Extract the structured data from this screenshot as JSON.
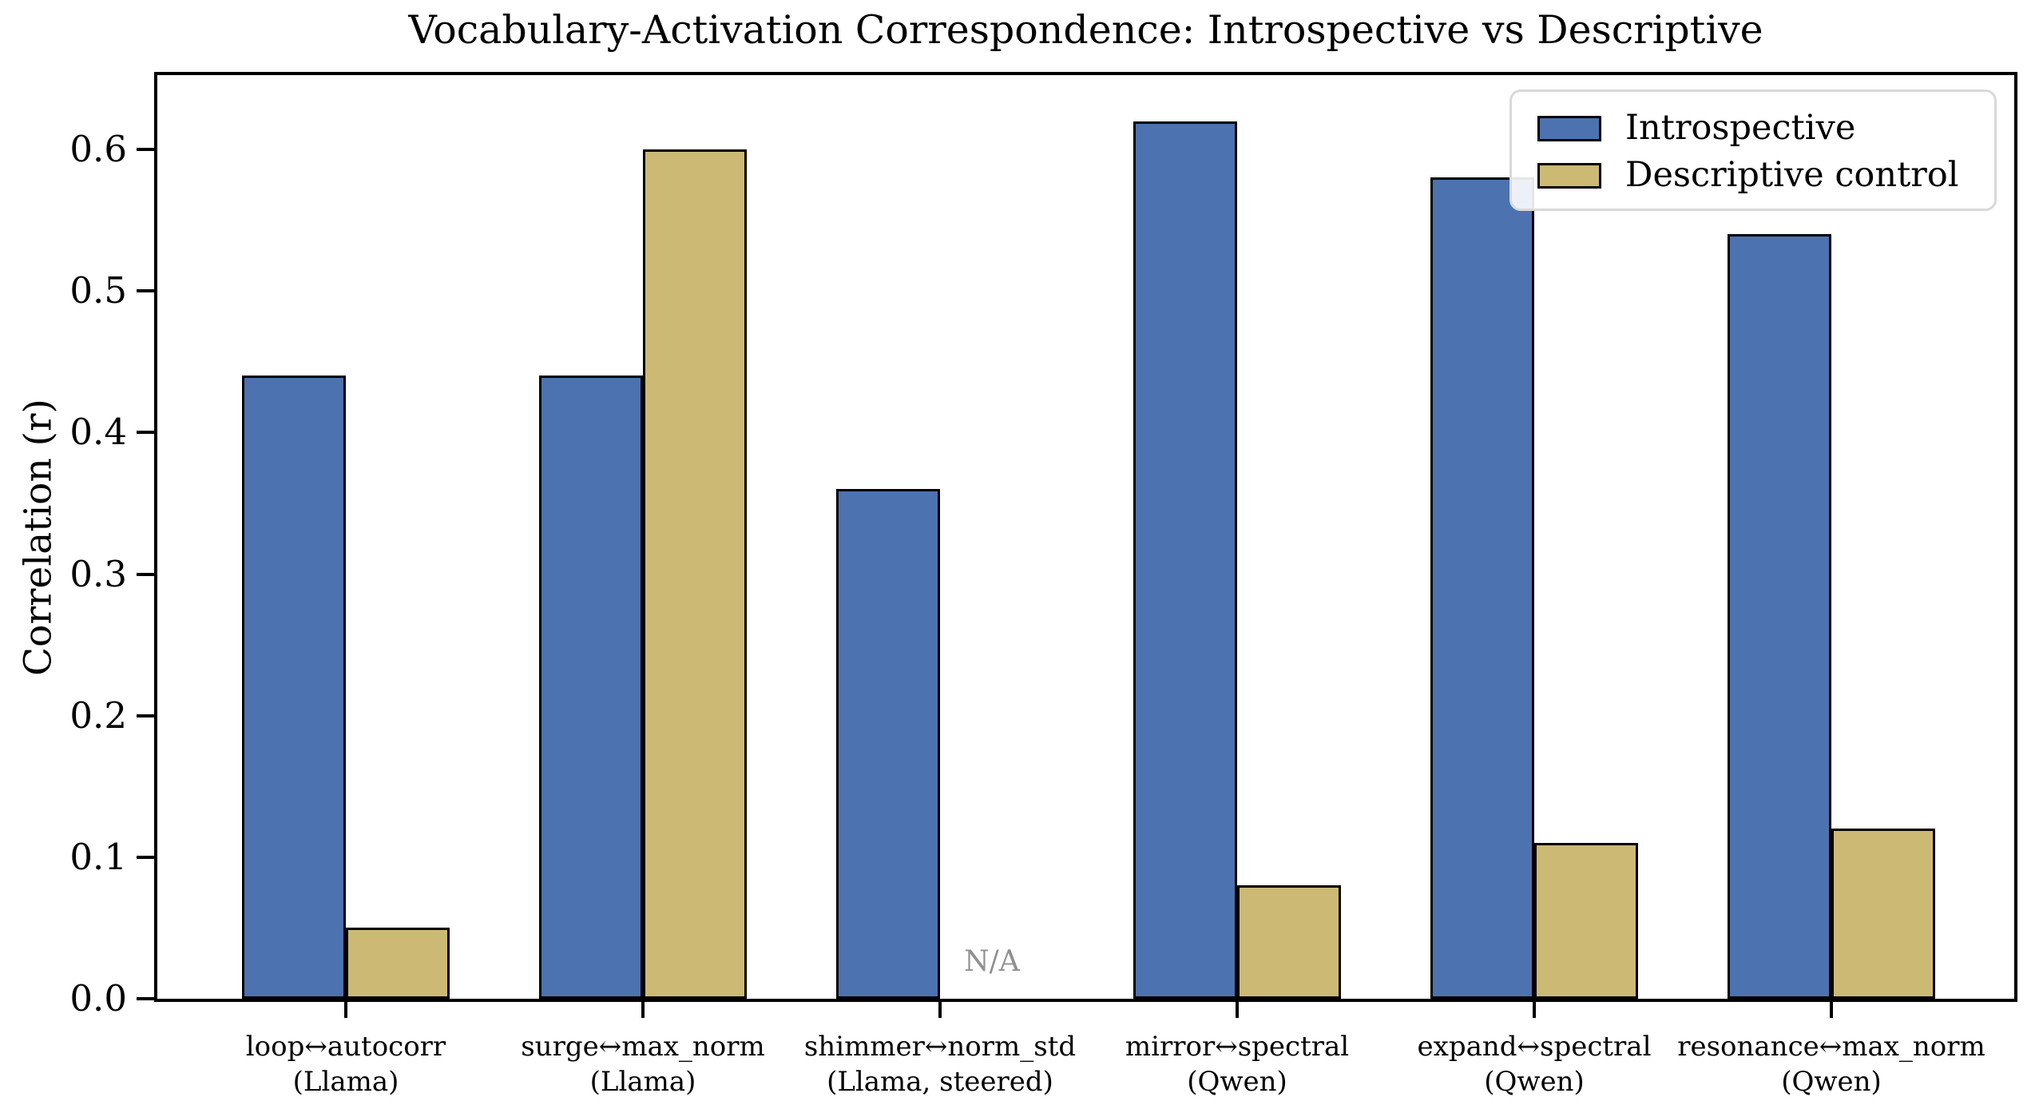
{
  "chart_data": {
    "type": "bar",
    "title": "Vocabulary-Activation Correspondence: Introspective vs Descriptive",
    "ylabel": "Correlation (r)",
    "xlabel": "",
    "ylim": [
      0,
      0.6525
    ],
    "yticks": [
      0.0,
      0.1,
      0.2,
      0.3,
      0.4,
      0.5,
      0.6
    ],
    "grid": false,
    "legend_position": "upper right",
    "bar_edge_color": "#000000",
    "missing_label": "N/A",
    "missing_label_color": "#909090",
    "categories": [
      {
        "pair": "loop↔autocorr",
        "model": "(Llama)"
      },
      {
        "pair": "surge↔max_norm",
        "model": "(Llama)"
      },
      {
        "pair": "shimmer↔norm_std",
        "model": "(Llama, steered)"
      },
      {
        "pair": "mirror↔spectral",
        "model": "(Qwen)"
      },
      {
        "pair": "expand↔spectral",
        "model": "(Qwen)"
      },
      {
        "pair": "resonance↔max_norm",
        "model": "(Qwen)"
      }
    ],
    "series": [
      {
        "name": "Introspective",
        "color": "#4C72B0",
        "values": [
          0.44,
          0.44,
          0.36,
          0.62,
          0.58,
          0.54
        ]
      },
      {
        "name": "Descriptive control",
        "color": "#CCB974",
        "values": [
          0.05,
          0.6,
          null,
          0.08,
          0.11,
          0.12
        ]
      }
    ]
  }
}
